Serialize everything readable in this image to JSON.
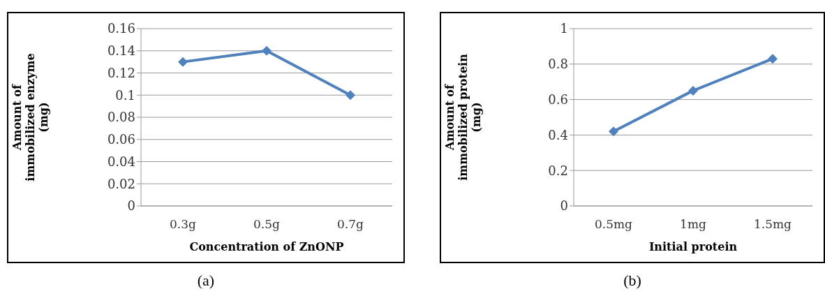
{
  "chart_data": [
    {
      "type": "line",
      "categories": [
        "0.3g",
        "0.5g",
        "0.7g"
      ],
      "series": [
        {
          "color": "#4f81bd",
          "values": [
            0.13,
            0.14,
            0.1
          ]
        }
      ],
      "xlabel": "Concentration of ZnONP",
      "ylabel": "Amount of\nimmobilized enzyme\n(mg)",
      "ylim": [
        0,
        0.16
      ],
      "yticks": [
        0,
        0.02,
        0.04,
        0.06,
        0.08,
        0.1,
        0.12,
        0.14,
        0.16
      ],
      "grid": "y",
      "marker": "diamond",
      "annotations": [
        "(a)"
      ]
    },
    {
      "type": "line",
      "categories": [
        "0.5mg",
        "1mg",
        "1.5mg"
      ],
      "series": [
        {
          "color": "#4f81bd",
          "values": [
            0.42,
            0.65,
            0.83
          ]
        }
      ],
      "xlabel": "Initial protein",
      "ylabel": "Amount of\nimmobilized protein\n(mg)",
      "ylim": [
        0,
        1
      ],
      "yticks": [
        0,
        0.2,
        0.4,
        0.6,
        0.8,
        1
      ],
      "grid": "y",
      "marker": "diamond",
      "annotations": [
        "(b)"
      ]
    }
  ]
}
